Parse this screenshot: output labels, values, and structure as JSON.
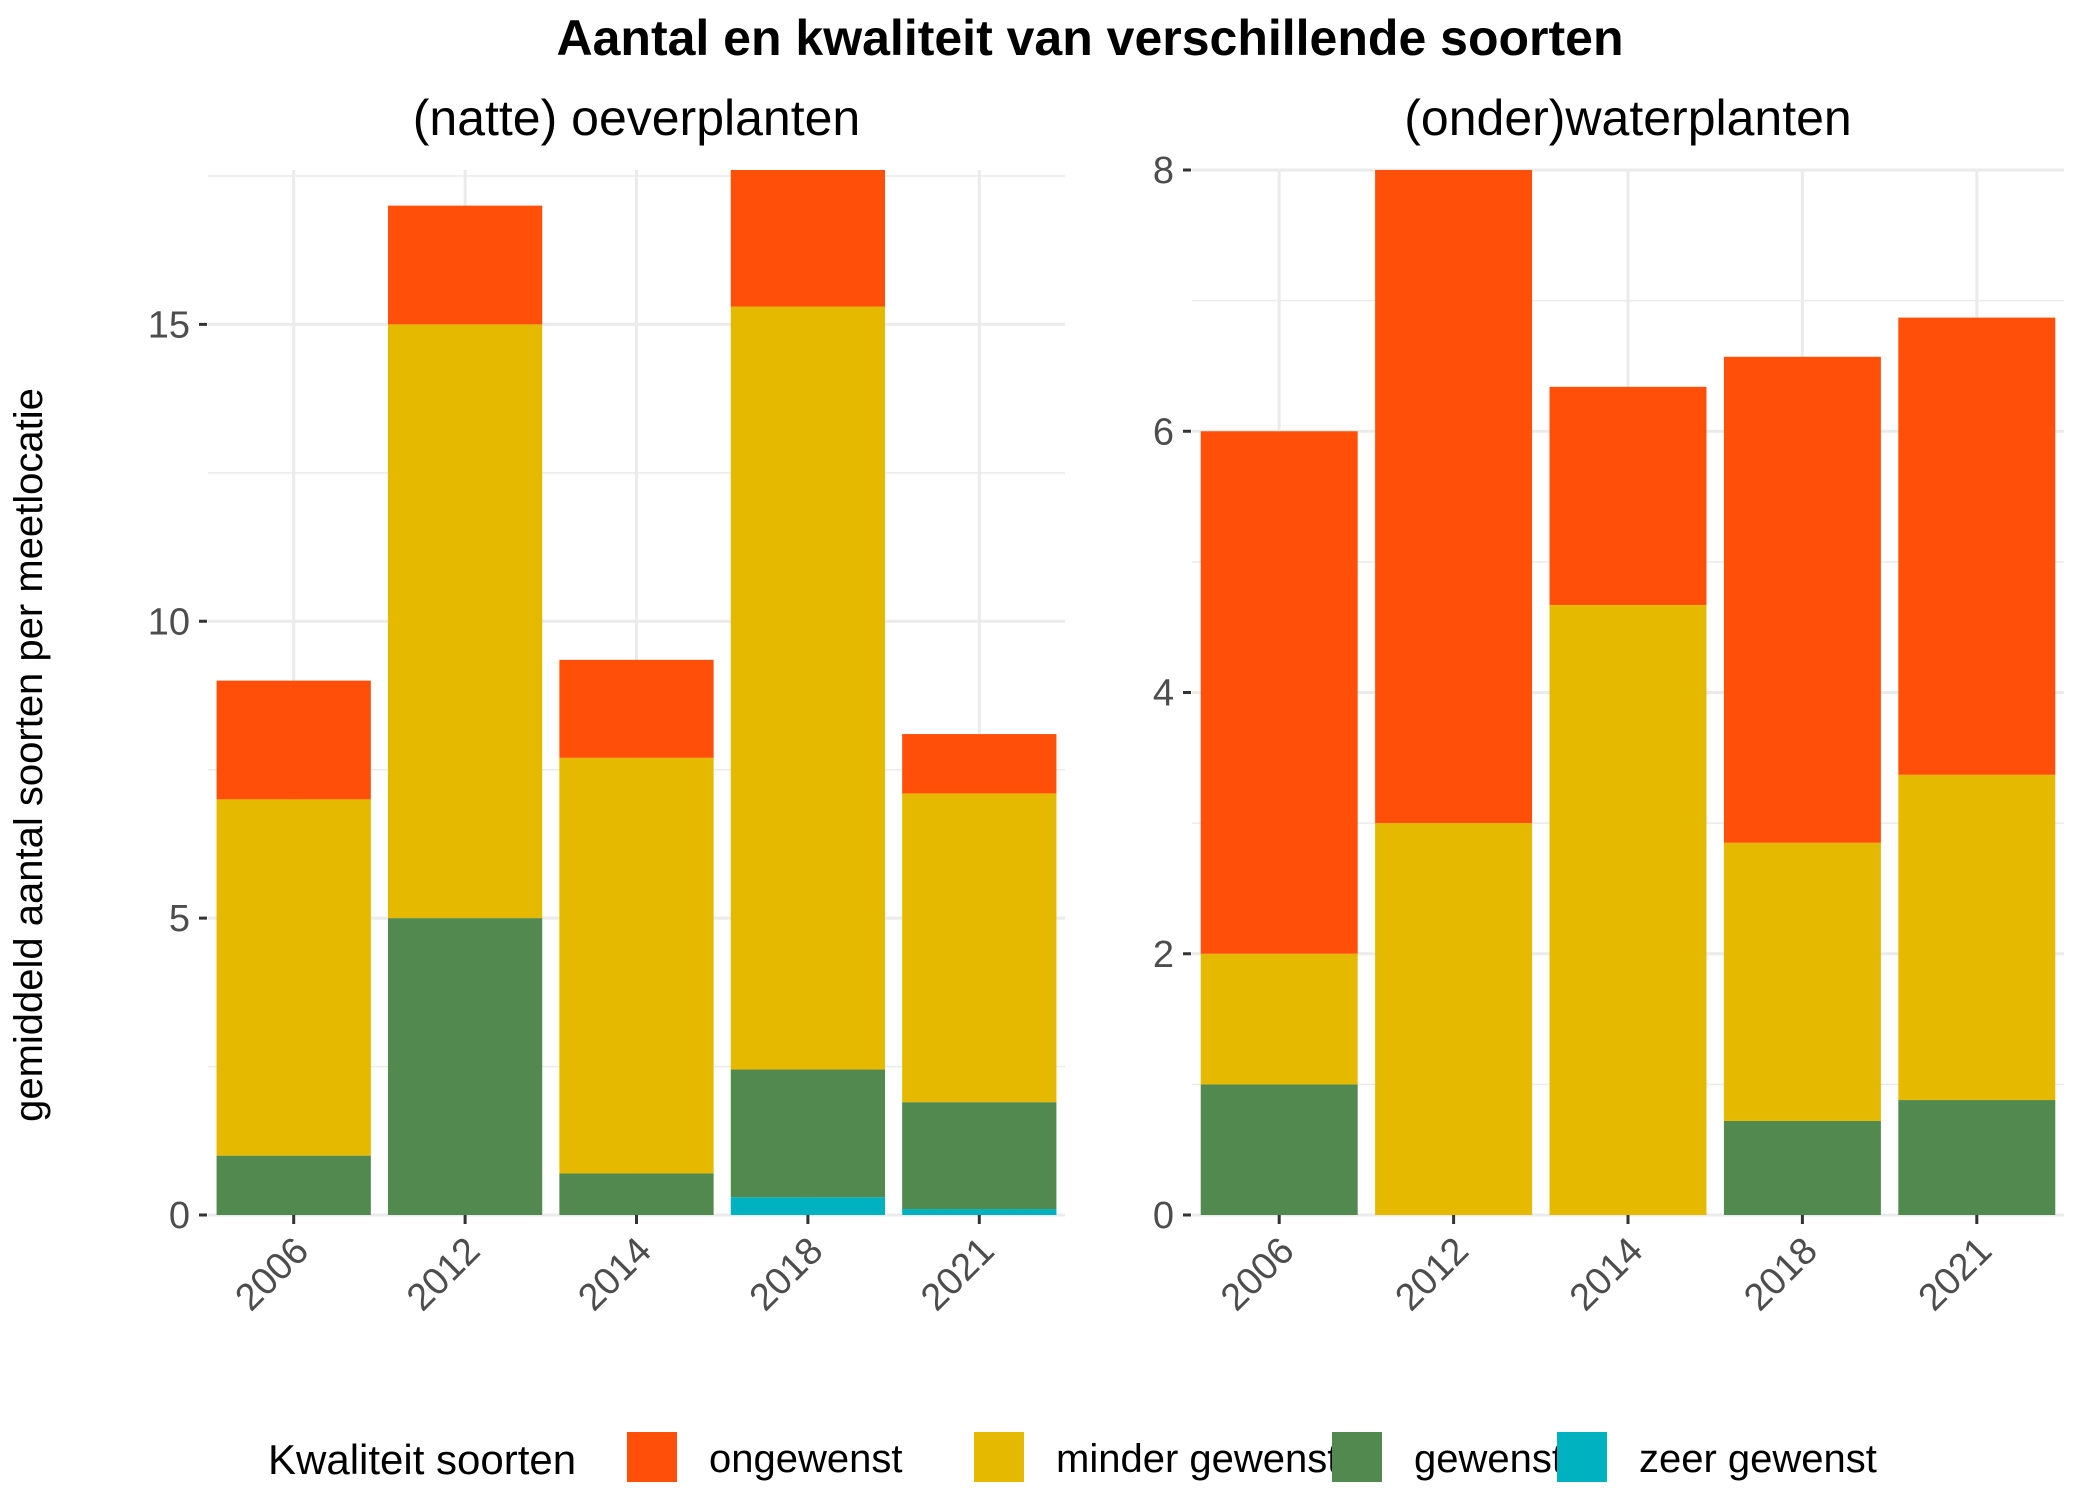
{
  "title": "Aantal en kwaliteit van verschillende soorten",
  "ylabel": "gemiddeld aantal soorten per meetlocatie",
  "legend": {
    "title": "Kwaliteit soorten",
    "placement": "bottom",
    "items": [
      {
        "label": "ongewenst",
        "color": "#FF4F09"
      },
      {
        "label": "minder gewenst",
        "color": "#E5B900"
      },
      {
        "label": "gewenst",
        "color": "#52894F"
      },
      {
        "label": "zeer gewenst",
        "color": "#00B2BF"
      }
    ]
  },
  "chart_data": [
    {
      "type": "bar",
      "stacked": true,
      "title": "(natte) oeverplanten",
      "xlabel": "",
      "ylabel": "gemiddeld aantal soorten per meetlocatie",
      "categories": [
        "2006",
        "2012",
        "2014",
        "2018",
        "2021"
      ],
      "ylim": [
        0,
        17.6
      ],
      "yticks": [
        0,
        5,
        10,
        15
      ],
      "grid": true,
      "series": [
        {
          "name": "zeer gewenst",
          "color": "#00B2BF",
          "values": [
            0,
            0,
            0,
            0.3,
            0.1
          ]
        },
        {
          "name": "gewenst",
          "color": "#52894F",
          "values": [
            1,
            5,
            0.7,
            2.15,
            1.8
          ]
        },
        {
          "name": "minder gewenst",
          "color": "#E5B900",
          "values": [
            6,
            10,
            7.0,
            12.85,
            5.2
          ]
        },
        {
          "name": "ongewenst",
          "color": "#FF4F09",
          "values": [
            2,
            2,
            1.65,
            2.3,
            1.0
          ]
        }
      ]
    },
    {
      "type": "bar",
      "stacked": true,
      "title": "(onder)waterplanten",
      "xlabel": "",
      "ylabel": "",
      "categories": [
        "2006",
        "2012",
        "2014",
        "2018",
        "2021"
      ],
      "ylim": [
        0,
        8
      ],
      "yticks": [
        0,
        2,
        4,
        6,
        8
      ],
      "grid": true,
      "series": [
        {
          "name": "zeer gewenst",
          "color": "#00B2BF",
          "values": [
            0,
            0,
            0,
            0,
            0
          ]
        },
        {
          "name": "gewenst",
          "color": "#52894F",
          "values": [
            1,
            0,
            0,
            0.72,
            0.88
          ]
        },
        {
          "name": "minder gewenst",
          "color": "#E5B900",
          "values": [
            1,
            3,
            4.67,
            2.13,
            2.49
          ]
        },
        {
          "name": "ongewenst",
          "color": "#FF4F09",
          "values": [
            4,
            5,
            1.67,
            3.72,
            3.5
          ]
        }
      ]
    }
  ]
}
